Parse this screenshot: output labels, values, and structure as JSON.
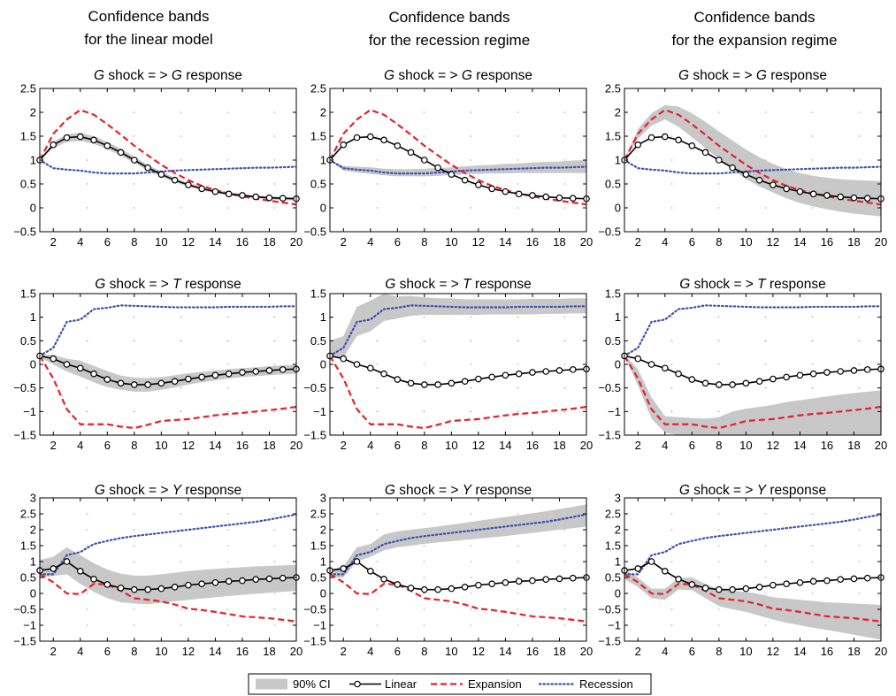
{
  "column_titles": [
    [
      "Confidence bands",
      "for the linear model"
    ],
    [
      "Confidence bands",
      "for the recession regime"
    ],
    [
      "Confidence bands",
      "for the expansion regime"
    ]
  ],
  "row_titles": [
    {
      "shock": "G",
      "middle": " shock = > ",
      "response": "G",
      "suffix": " response"
    },
    {
      "shock": "G",
      "middle": " shock = > ",
      "response": "T",
      "suffix": " response"
    },
    {
      "shock": "G",
      "middle": " shock = > ",
      "response": "Y",
      "suffix": " response"
    }
  ],
  "colors": {
    "linear": "#000000",
    "expansion": "#e8202a",
    "recession": "#3c50b0",
    "band": "#c8c8c8",
    "marker_fill": "#ffffff"
  },
  "legend": {
    "band": "90% CI",
    "linear": "Linear",
    "expansion": "Expansion",
    "recession": "Recession"
  },
  "chart_data": {
    "type": "line",
    "x": [
      1,
      2,
      3,
      4,
      5,
      6,
      7,
      8,
      9,
      10,
      11,
      12,
      13,
      14,
      15,
      16,
      17,
      18,
      19,
      20
    ],
    "xlim": [
      1,
      20
    ],
    "xticks": [
      2,
      4,
      6,
      8,
      10,
      12,
      14,
      16,
      18,
      20
    ],
    "legend_position": "bottom-center",
    "rows": [
      {
        "ylim": [
          -0.5,
          2.5
        ],
        "yticks": [
          -0.5,
          0,
          0.5,
          1,
          1.5,
          2,
          2.5
        ],
        "ytick_labels": [
          "−0.5",
          "0",
          "0.5",
          "1",
          "1.5",
          "2",
          "2.5"
        ],
        "linear": [
          1.0,
          1.32,
          1.47,
          1.49,
          1.42,
          1.3,
          1.16,
          1.0,
          0.84,
          0.7,
          0.58,
          0.48,
          0.4,
          0.34,
          0.29,
          0.26,
          0.23,
          0.21,
          0.2,
          0.19
        ],
        "expansion": [
          1.0,
          1.55,
          1.85,
          2.05,
          1.95,
          1.75,
          1.53,
          1.3,
          1.1,
          0.9,
          0.73,
          0.58,
          0.46,
          0.37,
          0.3,
          0.24,
          0.19,
          0.15,
          0.11,
          0.07
        ],
        "recession": [
          1.0,
          0.83,
          0.8,
          0.78,
          0.74,
          0.72,
          0.72,
          0.72,
          0.74,
          0.76,
          0.78,
          0.79,
          0.8,
          0.81,
          0.82,
          0.83,
          0.84,
          0.84,
          0.85,
          0.86
        ],
        "bands": [
          {
            "lower": [
              1.0,
              1.25,
              1.38,
              1.4,
              1.34,
              1.23,
              1.09,
              0.94,
              0.79,
              0.65,
              0.54,
              0.45,
              0.37,
              0.31,
              0.26,
              0.23,
              0.2,
              0.18,
              0.16,
              0.15
            ],
            "upper": [
              1.0,
              1.38,
              1.54,
              1.57,
              1.5,
              1.38,
              1.24,
              1.07,
              0.9,
              0.76,
              0.63,
              0.52,
              0.44,
              0.38,
              0.33,
              0.29,
              0.26,
              0.24,
              0.23,
              0.22
            ]
          },
          {
            "lower": [
              1.0,
              0.78,
              0.74,
              0.71,
              0.68,
              0.66,
              0.66,
              0.66,
              0.67,
              0.69,
              0.7,
              0.71,
              0.72,
              0.72,
              0.73,
              0.73,
              0.73,
              0.73,
              0.73,
              0.73
            ],
            "upper": [
              1.0,
              0.88,
              0.86,
              0.85,
              0.82,
              0.81,
              0.81,
              0.82,
              0.83,
              0.85,
              0.87,
              0.89,
              0.9,
              0.92,
              0.93,
              0.95,
              0.96,
              0.97,
              0.99,
              1.0
            ]
          },
          {
            "lower": [
              1.0,
              1.45,
              1.72,
              1.85,
              1.7,
              1.48,
              1.25,
              1.02,
              0.8,
              0.6,
              0.45,
              0.32,
              0.2,
              0.1,
              0.03,
              -0.03,
              -0.08,
              -0.12,
              -0.15,
              -0.18
            ],
            "upper": [
              1.0,
              1.65,
              1.98,
              2.15,
              2.12,
              1.98,
              1.8,
              1.6,
              1.41,
              1.22,
              1.06,
              0.92,
              0.81,
              0.73,
              0.67,
              0.63,
              0.6,
              0.58,
              0.57,
              0.56
            ]
          }
        ]
      },
      {
        "ylim": [
          -1.5,
          1.5
        ],
        "yticks": [
          -1.5,
          -1,
          -0.5,
          0,
          0.5,
          1,
          1.5
        ],
        "ytick_labels": [
          "−1.5",
          "−1",
          "−0.5",
          "0",
          "0.5",
          "1",
          "1.5"
        ],
        "linear": [
          0.18,
          0.12,
          0.0,
          -0.08,
          -0.2,
          -0.32,
          -0.4,
          -0.43,
          -0.43,
          -0.4,
          -0.36,
          -0.31,
          -0.27,
          -0.23,
          -0.2,
          -0.17,
          -0.15,
          -0.13,
          -0.11,
          -0.1
        ],
        "expansion": [
          0.18,
          -0.3,
          -0.95,
          -1.27,
          -1.27,
          -1.27,
          -1.32,
          -1.35,
          -1.28,
          -1.2,
          -1.18,
          -1.16,
          -1.12,
          -1.08,
          -1.05,
          -1.03,
          -1.0,
          -0.97,
          -0.94,
          -0.9
        ],
        "recession": [
          0.18,
          0.35,
          0.9,
          0.95,
          1.17,
          1.2,
          1.25,
          1.24,
          1.23,
          1.22,
          1.21,
          1.21,
          1.21,
          1.21,
          1.22,
          1.22,
          1.22,
          1.22,
          1.23,
          1.23
        ],
        "bands": [
          {
            "lower": [
              0.15,
              0.0,
              -0.15,
              -0.26,
              -0.38,
              -0.48,
              -0.54,
              -0.58,
              -0.58,
              -0.54,
              -0.49,
              -0.43,
              -0.38,
              -0.34,
              -0.3,
              -0.27,
              -0.25,
              -0.23,
              -0.21,
              -0.2
            ],
            "upper": [
              0.21,
              0.2,
              0.12,
              0.08,
              -0.03,
              -0.14,
              -0.24,
              -0.28,
              -0.29,
              -0.27,
              -0.23,
              -0.19,
              -0.16,
              -0.13,
              -0.1,
              -0.08,
              -0.06,
              -0.04,
              -0.02,
              -0.01
            ]
          },
          {
            "lower": [
              0.15,
              0.15,
              0.6,
              0.7,
              0.92,
              0.97,
              1.03,
              1.05,
              1.05,
              1.05,
              1.05,
              1.05,
              1.06,
              1.06,
              1.06,
              1.06,
              1.07,
              1.07,
              1.08,
              1.08
            ],
            "upper": [
              0.5,
              0.6,
              1.22,
              1.35,
              1.5,
              1.44,
              1.45,
              1.42,
              1.4,
              1.4,
              1.38,
              1.38,
              1.38,
              1.38,
              1.38,
              1.39,
              1.39,
              1.39,
              1.4,
              1.4
            ]
          },
          {
            "lower": [
              0.18,
              -0.45,
              -1.15,
              -1.45,
              -1.5,
              -1.5,
              -1.5,
              -1.5,
              -1.5,
              -1.5,
              -1.5,
              -1.5,
              -1.5,
              -1.5,
              -1.5,
              -1.5,
              -1.5,
              -1.5,
              -1.5,
              -1.5
            ],
            "upper": [
              0.2,
              -0.1,
              -0.7,
              -1.1,
              -1.12,
              -1.14,
              -1.15,
              -1.12,
              -1.0,
              -0.94,
              -0.9,
              -0.86,
              -0.8,
              -0.76,
              -0.72,
              -0.68,
              -0.64,
              -0.61,
              -0.58,
              -0.55
            ]
          }
        ]
      },
      {
        "ylim": [
          -1.5,
          3
        ],
        "yticks": [
          -1.5,
          -1,
          -0.5,
          0,
          0.5,
          1,
          1.5,
          2,
          2.5,
          3
        ],
        "ytick_labels": [
          "−1.5",
          "−1",
          "−0.5",
          "0",
          "0.5",
          "1",
          "1.5",
          "2",
          "2.5",
          "3"
        ],
        "linear": [
          0.72,
          0.78,
          1.0,
          0.7,
          0.45,
          0.28,
          0.17,
          0.12,
          0.12,
          0.15,
          0.2,
          0.26,
          0.3,
          0.34,
          0.38,
          0.4,
          0.44,
          0.46,
          0.48,
          0.5
        ],
        "expansion": [
          0.6,
          0.35,
          0.0,
          -0.02,
          0.3,
          0.28,
          0.08,
          -0.15,
          -0.2,
          -0.25,
          -0.35,
          -0.48,
          -0.52,
          -0.58,
          -0.65,
          -0.72,
          -0.75,
          -0.78,
          -0.83,
          -0.88
        ],
        "recession": [
          0.6,
          0.6,
          1.2,
          1.3,
          1.55,
          1.65,
          1.74,
          1.8,
          1.85,
          1.9,
          1.95,
          2.0,
          2.05,
          2.1,
          2.15,
          2.2,
          2.25,
          2.32,
          2.4,
          2.48
        ],
        "bands": [
          {
            "lower": [
              0.5,
              0.55,
              0.6,
              0.3,
              0.05,
              -0.15,
              -0.28,
              -0.32,
              -0.34,
              -0.3,
              -0.25,
              -0.2,
              -0.16,
              -0.12,
              -0.08,
              -0.05,
              -0.01,
              0.02,
              0.05,
              0.08
            ],
            "upper": [
              1.05,
              1.15,
              1.45,
              1.2,
              0.95,
              0.75,
              0.62,
              0.56,
              0.56,
              0.6,
              0.65,
              0.7,
              0.74,
              0.77,
              0.8,
              0.82,
              0.85,
              0.86,
              0.88,
              0.9
            ]
          },
          {
            "lower": [
              0.5,
              0.5,
              1.0,
              1.15,
              1.35,
              1.45,
              1.5,
              1.56,
              1.6,
              1.64,
              1.68,
              1.72,
              1.76,
              1.8,
              1.85,
              1.9,
              1.95,
              2.0,
              2.05,
              2.1
            ],
            "upper": [
              0.75,
              0.85,
              1.45,
              1.55,
              1.85,
              1.95,
              2.0,
              2.05,
              2.1,
              2.16,
              2.22,
              2.28,
              2.34,
              2.4,
              2.46,
              2.52,
              2.58,
              2.65,
              2.72,
              2.8
            ]
          },
          {
            "lower": [
              0.45,
              0.2,
              -0.15,
              -0.2,
              0.12,
              0.1,
              -0.15,
              -0.4,
              -0.5,
              -0.58,
              -0.7,
              -0.82,
              -0.92,
              -1.0,
              -1.08,
              -1.15,
              -1.22,
              -1.3,
              -1.38,
              -1.45
            ],
            "upper": [
              0.75,
              0.5,
              0.15,
              0.15,
              0.48,
              0.5,
              0.3,
              0.12,
              0.08,
              0.05,
              -0.02,
              -0.12,
              -0.16,
              -0.2,
              -0.24,
              -0.28,
              -0.3,
              -0.32,
              -0.34,
              -0.36
            ]
          }
        ]
      }
    ]
  }
}
